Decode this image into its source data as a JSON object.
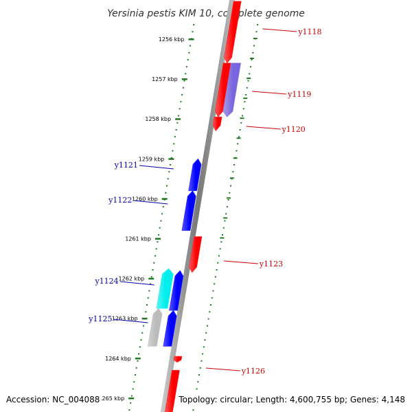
{
  "title": "Yersinia pestis KIM 10, complete genome",
  "footer": {
    "accession": "Accession: NC_004088",
    "stats": "Topology: circular; Length: 4,600,755 bp; Genes: 4,148"
  },
  "colors": {
    "forward_gene": "#ff0000",
    "reverse_gene": "#0000ff",
    "purple_gene": "#7766dd",
    "cyan_gene": "#00eeee",
    "gray_gene": "#bbbbbb",
    "ruler_ticks": "#227722",
    "backbone": "#888888"
  },
  "ruler": [
    {
      "pos": 1256,
      "label": "1256 kbp"
    },
    {
      "pos": 1257,
      "label": "1257 kbp"
    },
    {
      "pos": 1258,
      "label": "1258 kbp"
    },
    {
      "pos": 1259,
      "label": "1259 kbp"
    },
    {
      "pos": 1260,
      "label": "1260 kbp"
    },
    {
      "pos": 1261,
      "label": "1261 kbp"
    },
    {
      "pos": 1262,
      "label": "1262 kbp"
    },
    {
      "pos": 1263,
      "label": "1263 kbp"
    },
    {
      "pos": 1264,
      "label": "1264 kbp"
    },
    {
      "pos": 1265,
      "label": "1265 kbp"
    }
  ],
  "genes": [
    {
      "id": "y1118",
      "strand": "+",
      "color": "red",
      "start": 1255.05,
      "end": 1256.6,
      "labeled": true
    },
    {
      "id": "y1119",
      "strand": "+",
      "color": "red",
      "start": 1256.6,
      "end": 1257.95,
      "labeled": true
    },
    {
      "id": "y1120",
      "strand": "+",
      "color": "red",
      "start": 1257.95,
      "end": 1258.3,
      "labeled": true
    },
    {
      "id": "y1119b",
      "strand": "+",
      "color": "purple",
      "start": 1256.6,
      "end": 1257.95,
      "labeled": false
    },
    {
      "id": "y1121",
      "strand": "-",
      "color": "blue",
      "start": 1259.0,
      "end": 1259.8,
      "labeled": true
    },
    {
      "id": "y1122",
      "strand": "-",
      "color": "blue",
      "start": 1259.8,
      "end": 1260.8,
      "labeled": true
    },
    {
      "id": "y1123",
      "strand": "+",
      "color": "red",
      "start": 1260.95,
      "end": 1261.85,
      "labeled": true
    },
    {
      "id": "y1124",
      "strand": "-",
      "color": "cyan",
      "start": 1261.75,
      "end": 1262.75,
      "labeled": true
    },
    {
      "id": "y1124b",
      "strand": "-",
      "color": "blue",
      "start": 1261.8,
      "end": 1262.8,
      "labeled": false
    },
    {
      "id": "y1125",
      "strand": "-",
      "color": "gray",
      "start": 1262.75,
      "end": 1263.7,
      "labeled": true
    },
    {
      "id": "y1125b",
      "strand": "-",
      "color": "blue",
      "start": 1262.8,
      "end": 1263.7,
      "labeled": false
    },
    {
      "id": "y1126",
      "strand": "+",
      "color": "red",
      "start": 1263.95,
      "end": 1264.1,
      "labeled": true
    },
    {
      "id": "y1127",
      "strand": "+",
      "color": "red",
      "start": 1264.3,
      "end": 1265.5,
      "labeled": false
    }
  ]
}
